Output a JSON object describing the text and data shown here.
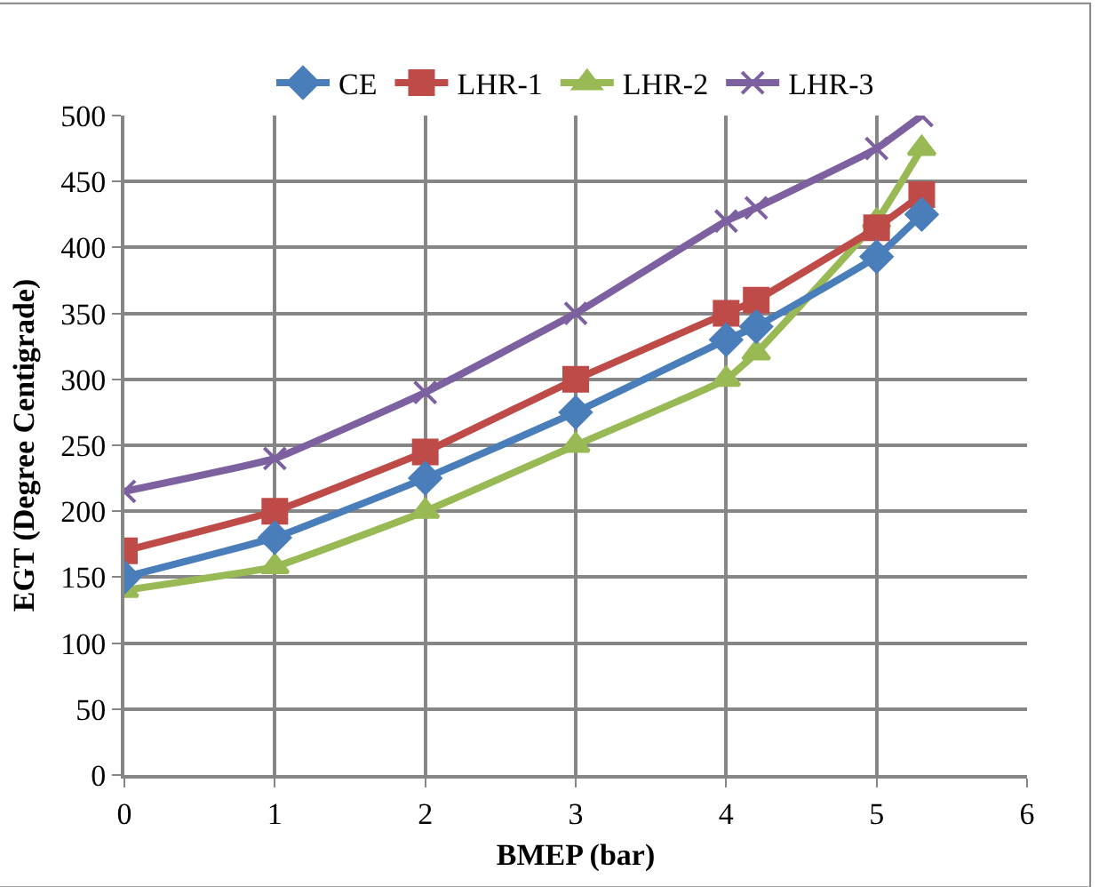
{
  "chart_data": {
    "type": "line",
    "xlabel": "BMEP (bar)",
    "ylabel": "EGT (Degree Centigrade)",
    "x": [
      0,
      1,
      2,
      3,
      4,
      4.2,
      5,
      5.3
    ],
    "series": [
      {
        "name": "CE",
        "color": "#4a7ebb",
        "marker": "diamond",
        "values": [
          150,
          180,
          225,
          275,
          330,
          340,
          393,
          425
        ]
      },
      {
        "name": "LHR-1",
        "color": "#be4b48",
        "marker": "square",
        "values": [
          170,
          200,
          245,
          300,
          350,
          360,
          415,
          440
        ]
      },
      {
        "name": "LHR-2",
        "color": "#98b954",
        "marker": "triangle",
        "values": [
          140,
          158,
          200,
          250,
          300,
          320,
          420,
          475
        ]
      },
      {
        "name": "LHR-3",
        "color": "#7d60a0",
        "marker": "cross",
        "values": [
          215,
          240,
          290,
          350,
          420,
          430,
          475,
          500
        ]
      }
    ],
    "xlim": [
      0,
      6
    ],
    "xticks": [
      0,
      1,
      2,
      3,
      4,
      5,
      6
    ],
    "ylim": [
      0,
      500
    ],
    "yticks": [
      0,
      50,
      100,
      150,
      200,
      250,
      300,
      350,
      400,
      450,
      500
    ],
    "grid": true,
    "legend": "top"
  }
}
